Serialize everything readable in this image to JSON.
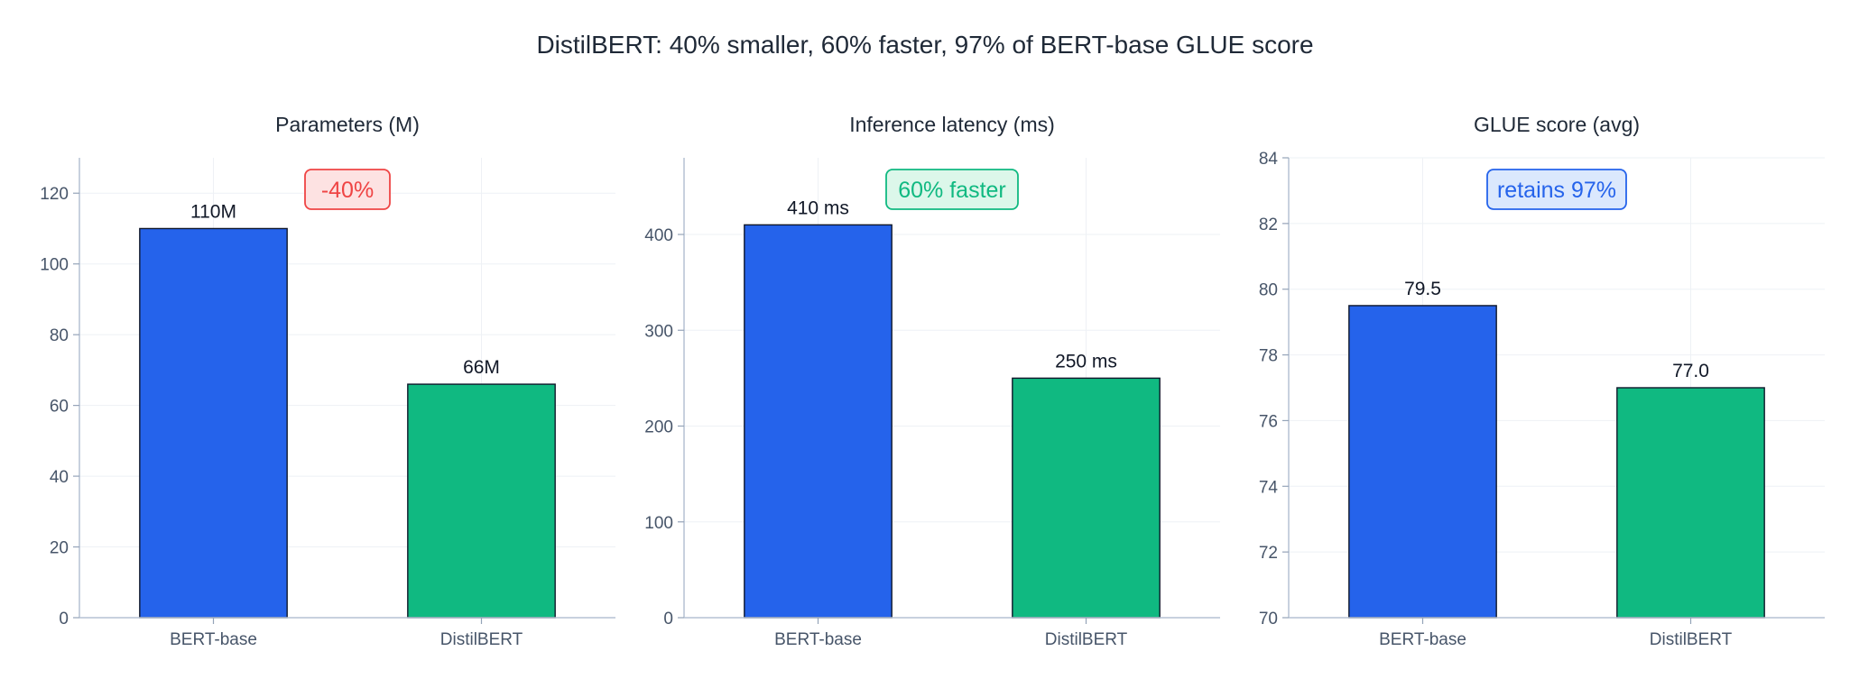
{
  "figure_title": "DistilBERT: 40% smaller, 60% faster, 97% of BERT-base GLUE score",
  "colors": {
    "bert": "#2563eb",
    "distilbert": "#10b981"
  },
  "chart_data": [
    {
      "type": "bar",
      "title": "Parameters (M)",
      "categories": [
        "BERT-base",
        "DistilBERT"
      ],
      "values": [
        110,
        66
      ],
      "value_labels": [
        "110M",
        "66M"
      ],
      "ylim": [
        0,
        130
      ],
      "yticks": [
        0,
        20,
        40,
        60,
        80,
        100,
        120
      ],
      "grid": true,
      "annotation": {
        "text": "-40%",
        "color": "#ef4444",
        "fill": "#fde2e2"
      }
    },
    {
      "type": "bar",
      "title": "Inference latency (ms)",
      "categories": [
        "BERT-base",
        "DistilBERT"
      ],
      "values": [
        410,
        250
      ],
      "value_labels": [
        "410 ms",
        "250 ms"
      ],
      "ylim": [
        0,
        480
      ],
      "yticks": [
        0,
        100,
        200,
        300,
        400
      ],
      "grid": true,
      "annotation": {
        "text": "60% faster",
        "color": "#10b981",
        "fill": "#dcf7ea"
      }
    },
    {
      "type": "bar",
      "title": "GLUE score (avg)",
      "categories": [
        "BERT-base",
        "DistilBERT"
      ],
      "values": [
        79.5,
        77.0
      ],
      "value_labels": [
        "79.5",
        "77.0"
      ],
      "ylim": [
        70,
        84
      ],
      "yticks": [
        70,
        72,
        74,
        76,
        78,
        80,
        82,
        84
      ],
      "grid": true,
      "annotation": {
        "text": "retains 97%",
        "color": "#2563eb",
        "fill": "#dbe8fd"
      }
    }
  ]
}
